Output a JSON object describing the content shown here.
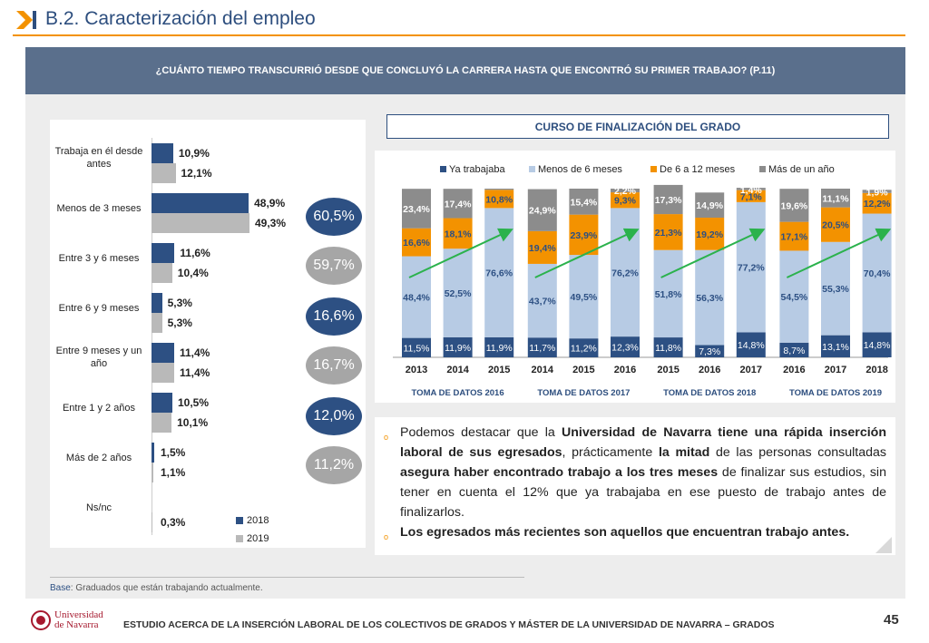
{
  "header": {
    "title": "B.2. Caracterización del empleo",
    "question": "¿CUÁNTO TIEMPO TRANSCURRIÓ DESDE QUE CONCLUYÓ LA CARRERA HASTA QUE ENCONTRÓ SU PRIMER TRABAJO? (P.11)"
  },
  "colors": {
    "navy": "#2d5083",
    "gray": "#b9b9b9",
    "light_blue": "#b7cbe4",
    "orange": "#f39200",
    "gray_mid": "#8c8c8c",
    "arrow_green": "#2bb24c"
  },
  "chart_data": [
    {
      "type": "bar",
      "orientation": "horizontal",
      "categories": [
        "Trabaja en él desde antes",
        "Menos de 3 meses",
        "Entre 3 y 6 meses",
        "Entre 6 y 9 meses",
        "Entre 9 meses y un año",
        "Entre 1 y 2 años",
        "Más de 2 años",
        "Ns/nc"
      ],
      "series": [
        {
          "name": "2018",
          "values": [
            10.9,
            48.9,
            11.6,
            5.3,
            11.4,
            10.5,
            1.5,
            0.0
          ]
        },
        {
          "name": "2019",
          "values": [
            12.1,
            49.3,
            10.4,
            5.3,
            11.4,
            10.1,
            1.1,
            0.3
          ]
        }
      ],
      "value_labels": [
        [
          "10,9%",
          "12,1%"
        ],
        [
          "48,9%",
          "49,3%"
        ],
        [
          "11,6%",
          "10,4%"
        ],
        [
          "5,3%",
          "5,3%"
        ],
        [
          "11,4%",
          "11,4%"
        ],
        [
          "10,5%",
          "10,1%"
        ],
        [
          "1,5%",
          "1,1%"
        ],
        [
          "",
          "0,3%"
        ]
      ],
      "bubbles": [
        {
          "value": "60,5%",
          "style": "dark"
        },
        {
          "value": "59,7%",
          "style": "light"
        },
        {
          "value": "16,6%",
          "style": "dark"
        },
        {
          "value": "16,7%",
          "style": "light"
        },
        {
          "value": "12,0%",
          "style": "dark"
        },
        {
          "value": "11,2%",
          "style": "light"
        }
      ],
      "legend": [
        "2018",
        "2019"
      ],
      "legend_position": "bottom-right"
    },
    {
      "type": "bar",
      "stacked": true,
      "percent": true,
      "title": "CURSO DE FINALIZACIÓN DEL GRADO",
      "legend": [
        "Ya trabajaba",
        "Menos de 6 meses",
        "De 6 a 12 meses",
        "Más de un año"
      ],
      "legend_position": "top",
      "groups": [
        {
          "label": "TOMA DE DATOS 2016",
          "categories": [
            "2013",
            "2014",
            "2015"
          ]
        },
        {
          "label": "TOMA DE DATOS 2017",
          "categories": [
            "2014",
            "2015",
            "2016"
          ]
        },
        {
          "label": "TOMA DE DATOS 2018",
          "categories": [
            "2015",
            "2016",
            "2017"
          ]
        },
        {
          "label": "TOMA DE DATOS 2019",
          "categories": [
            "2016",
            "2017",
            "2018"
          ]
        }
      ],
      "categories": [
        "2013",
        "2014",
        "2015",
        "2014",
        "2015",
        "2016",
        "2015",
        "2016",
        "2017",
        "2016",
        "2017",
        "2018"
      ],
      "series": [
        {
          "name": "Ya trabajaba",
          "values": [
            11.5,
            11.9,
            11.9,
            11.7,
            11.2,
            12.3,
            11.8,
            7.3,
            14.8,
            8.7,
            13.1,
            14.8
          ]
        },
        {
          "name": "Menos de 6 meses",
          "values": [
            48.4,
            52.5,
            76.6,
            43.7,
            49.5,
            76.2,
            51.8,
            56.3,
            77.2,
            54.5,
            55.3,
            70.4
          ]
        },
        {
          "name": "De 6 a 12 meses",
          "values": [
            16.6,
            18.1,
            10.8,
            19.4,
            23.9,
            9.3,
            21.3,
            19.2,
            7.1,
            17.1,
            20.5,
            12.2
          ]
        },
        {
          "name": "Más de un año",
          "values": [
            23.4,
            17.4,
            0.7,
            24.9,
            15.4,
            2.2,
            17.3,
            14.9,
            1.4,
            19.6,
            11.1,
            1.9
          ]
        }
      ],
      "value_labels": {
        "Ya trabajaba": [
          "11,5%",
          "11,9%",
          "11,9%",
          "11,7%",
          "11,2%",
          "12,3%",
          "11,8%",
          "7,3%",
          "14,8%",
          "8,7%",
          "13,1%",
          "14,8%"
        ],
        "Menos de 6 meses": [
          "48,4%",
          "52,5%",
          "76,6%",
          "43,7%",
          "49,5%",
          "76,2%",
          "51,8%",
          "56,3%",
          "77,2%",
          "54,5%",
          "55,3%",
          "70,4%"
        ],
        "De 6 a 12 meses": [
          "16,6%",
          "18,1%",
          "10,8%",
          "19,4%",
          "23,9%",
          "9,3%",
          "21,3%",
          "19,2%",
          "7,1%",
          "17,1%",
          "20,5%",
          "12,2%"
        ],
        "Más de un año": [
          "23,4%",
          "17,4%",
          "",
          "24,9%",
          "15,4%",
          "2,2%",
          "17,3%",
          "14,9%",
          "1,4%",
          "19,6%",
          "11,1%",
          "1,9%"
        ]
      },
      "ylim": [
        0,
        100
      ]
    }
  ],
  "text": {
    "p1_a": "Podemos destacar que la ",
    "p1_b": "Universidad de Navarra tiene una rápida inserción laboral de sus egresados",
    "p1_c": ", prácticamente ",
    "p1_d": "la mitad",
    "p1_e": " de las personas consultadas ",
    "p1_f": "asegura haber encontrado trabajo a los tres meses",
    "p1_g": " de finalizar sus estudios, sin tener en cuenta el 12% que ya trabajaba en ese puesto de trabajo antes de finalizarlos.",
    "p2": "Los egresados más recientes son aquellos que encuentran trabajo antes.",
    "bullet": "o"
  },
  "footer": {
    "base_label": "Base",
    "base_text": ": Graduados que están trabajando actualmente.",
    "logo_line1": "Universidad",
    "logo_line2": "de Navarra",
    "study_title": "ESTUDIO ACERCA DE LA INSERCIÓN LABORAL DE LOS COLECTIVOS DE GRADOS Y MÁSTER DE LA UNIVERSIDAD DE NAVARRA – GRADOS",
    "page_number": "45"
  }
}
